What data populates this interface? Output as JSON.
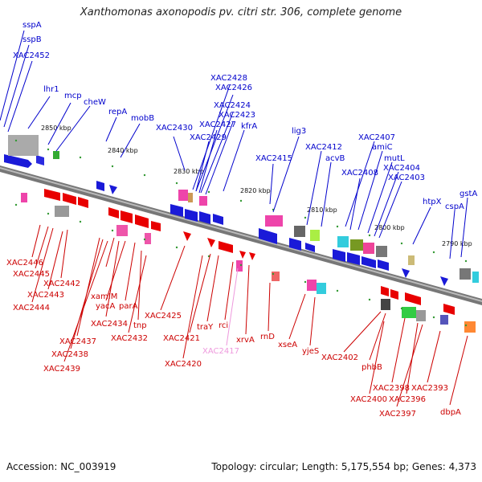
{
  "title": "Xanthomonas axonopodis pv. citri str. 306, complete genome",
  "footer": {
    "accession": "Accession: NC_003919",
    "topology": "Topology: circular; Length: 5,175,554 bp; Genes: 4,373"
  },
  "kbp_labels": [
    "2850 kbp",
    "2840 kbp",
    "2830 kbp",
    "2820 kbp",
    "2810 kbp",
    "2800 kbp",
    "2790 kbp"
  ],
  "upper_genes": [
    "sspA",
    "sspB",
    "XAC2452",
    "lhr1",
    "mcp",
    "cheW",
    "repA",
    "mobB",
    "XAC2428",
    "XAC2426",
    "XAC2430",
    "XAC2424",
    "XAC2423",
    "XAC2427",
    "kfrA",
    "XAC2429",
    "lig3",
    "XAC2415",
    "XAC2412",
    "acvB",
    "XAC2407",
    "amiC",
    "XAC2408",
    "mutL",
    "XAC2404",
    "XAC2403",
    "htpX",
    "cspA",
    "gstA"
  ],
  "lower_genes": [
    "XAC2446",
    "XAC2445",
    "XAC2442",
    "XAC2443",
    "XAC2444",
    "xamIM",
    "yacA",
    "parA",
    "XAC2434",
    "tnp",
    "XAC2437",
    "XAC2438",
    "XAC2439",
    "XAC2432",
    "XAC2425",
    "XAC2421",
    "traY",
    "rci",
    "XAC2417",
    "xrvA",
    "XAC2420",
    "rnD",
    "xseA",
    "yjeS",
    "XAC2402",
    "phbB",
    "XAC2398",
    "XAC2393",
    "XAC2400",
    "XAC2396",
    "XAC2397",
    "dbpA"
  ],
  "colors": {
    "forward": "#0000cc",
    "reverse": "#cc0000",
    "pseudo": "#ee99dd",
    "backbone": "#777777"
  }
}
